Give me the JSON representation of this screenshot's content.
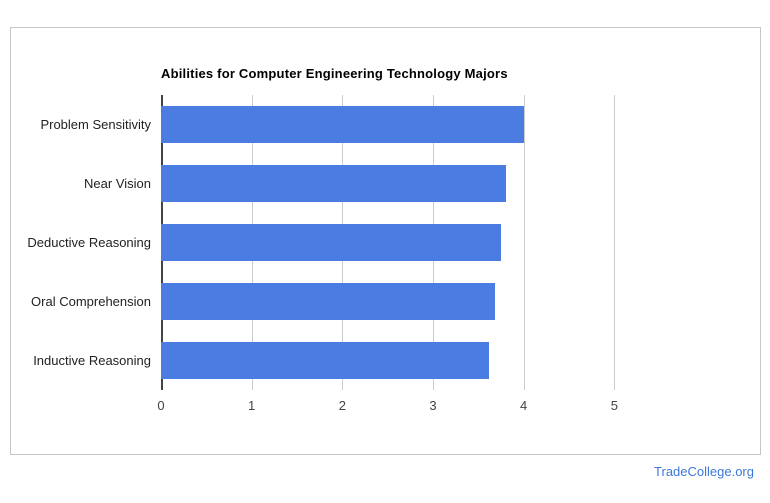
{
  "page": {
    "footer_link": "TradeCollege.org",
    "footer_color": "#3c78d8",
    "card_border_color": "#c6c6c6"
  },
  "chart_data": {
    "type": "bar",
    "orientation": "horizontal",
    "title": "Abilities for Computer Engineering Technology Majors",
    "categories": [
      "Problem Sensitivity",
      "Near Vision",
      "Deductive Reasoning",
      "Oral Comprehension",
      "Inductive Reasoning"
    ],
    "values": [
      4.0,
      3.8,
      3.75,
      3.68,
      3.62
    ],
    "xlabel": "",
    "ylabel": "",
    "xlim": [
      0,
      6
    ],
    "ticks": [
      0,
      1,
      2,
      3,
      4,
      5
    ],
    "bar_color": "#4a7ce1",
    "grid": true,
    "legend": false,
    "background": "#ffffff"
  }
}
